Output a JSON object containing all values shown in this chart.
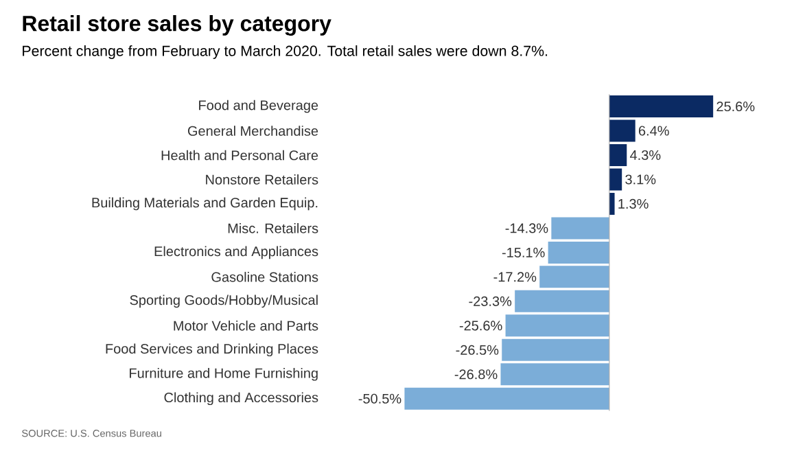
{
  "chart_data": {
    "type": "bar",
    "orientation": "horizontal",
    "title": "Retail store sales by category",
    "subtitle": "Percent change from February to March 2020. Total retail sales were down 8.7%.",
    "categories": [
      "Food and Beverage",
      "General Merchandise",
      "Health and Personal Care",
      "Nonstore Retailers",
      "Building Materials and Garden Equip.",
      "Misc. Retailers",
      "Electronics and Appliances",
      "Gasoline Stations",
      "Sporting Goods/Hobby/Musical",
      "Motor Vehicle and Parts",
      "Food Services and Drinking Places",
      "Furniture and Home Furnishing",
      "Clothing and Accessories"
    ],
    "values": [
      25.6,
      6.4,
      4.3,
      3.1,
      1.3,
      -14.3,
      -15.1,
      -17.2,
      -23.3,
      -25.6,
      -26.5,
      -26.8,
      -50.5
    ],
    "value_labels": [
      "25.6%",
      "6.4%",
      "4.3%",
      "3.1%",
      "1.3%",
      "-14.3%",
      "-15.1%",
      "-17.2%",
      "-23.3%",
      "-25.6%",
      "-26.5%",
      "-26.8%",
      "-50.5%"
    ],
    "colors": [
      "#0b2a63",
      "#0b2a63",
      "#0b2a63",
      "#0b2a63",
      "#0b2a63",
      "#7badd8",
      "#7badd8",
      "#7badd8",
      "#7badd8",
      "#7badd8",
      "#7badd8",
      "#7badd8",
      "#7badd8"
    ],
    "annotations": [
      "SOURCE: U.S. Census Bureau"
    ]
  }
}
